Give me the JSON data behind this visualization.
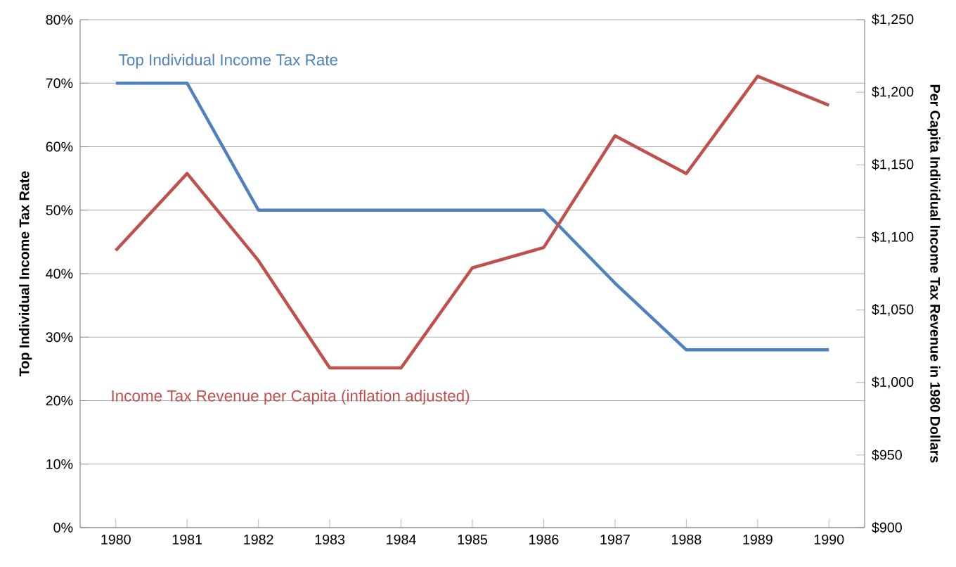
{
  "chart_data": {
    "type": "line",
    "categories": [
      "1980",
      "1981",
      "1982",
      "1983",
      "1984",
      "1985",
      "1986",
      "1987",
      "1988",
      "1989",
      "1990"
    ],
    "ylabel": "Top Individual Income Tax Rate",
    "y2label": "Per Capita Individual Income Tax Revenue in 1980 Dollars",
    "ylim": [
      0,
      80
    ],
    "yticks": [
      {
        "value": 0,
        "label": "0%"
      },
      {
        "value": 10,
        "label": "10%"
      },
      {
        "value": 20,
        "label": "20%"
      },
      {
        "value": 30,
        "label": "30%"
      },
      {
        "value": 40,
        "label": "40%"
      },
      {
        "value": 50,
        "label": "50%"
      },
      {
        "value": 60,
        "label": "60%"
      },
      {
        "value": 70,
        "label": "70%"
      },
      {
        "value": 80,
        "label": "80%"
      }
    ],
    "y2lim": [
      900,
      1250
    ],
    "y2ticks": [
      {
        "value": 900,
        "label": "$900"
      },
      {
        "value": 950,
        "label": "$950"
      },
      {
        "value": 1000,
        "label": "$1,000"
      },
      {
        "value": 1050,
        "label": "$1,050"
      },
      {
        "value": 1100,
        "label": "$1,100"
      },
      {
        "value": 1150,
        "label": "$1,150"
      },
      {
        "value": 1200,
        "label": "$1,200"
      },
      {
        "value": 1250,
        "label": "$1,250"
      }
    ],
    "grid": "y",
    "legend": false,
    "marker": "none",
    "series": [
      {
        "name": "Top Individual Income Tax Rate",
        "color": "#4f81bd",
        "values": [
          70,
          70,
          50,
          50,
          50,
          50,
          50,
          38.5,
          28,
          28,
          28
        ]
      },
      {
        "name": "Income Tax Revenue  per Capita (inflation adjusted)",
        "color": "#c0504d",
        "axis": "y2",
        "values": [
          1091,
          1144,
          1084,
          1010,
          1010,
          1079,
          1093,
          1170,
          1144,
          1211,
          1191
        ]
      }
    ]
  }
}
